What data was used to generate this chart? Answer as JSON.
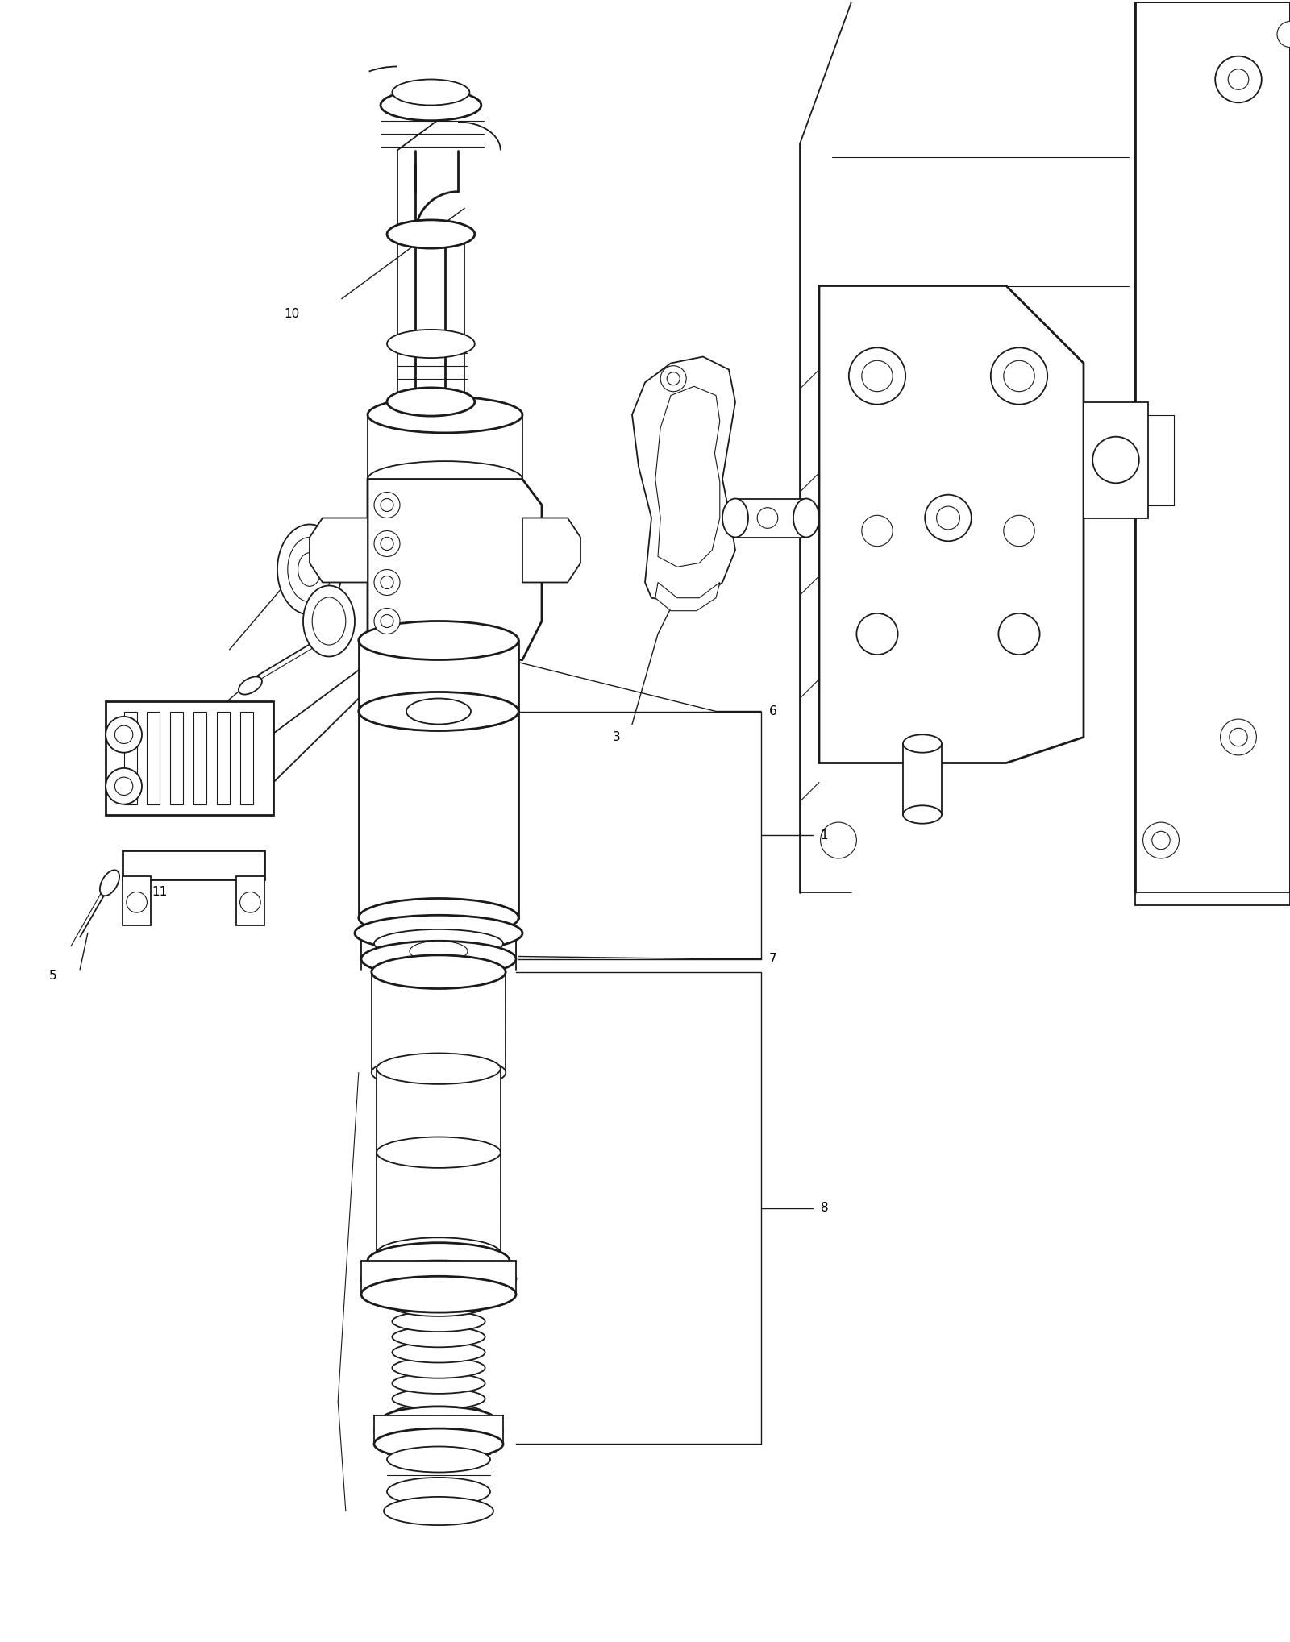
{
  "background_color": "#ffffff",
  "fig_width": 16.0,
  "fig_height": 20.37,
  "line_color": "#1a1a1a",
  "lw_thin": 0.8,
  "lw_med": 1.3,
  "lw_thick": 2.0,
  "label_fontsize": 11,
  "label_color": "#000000",
  "xlim": [
    0,
    1000
  ],
  "ylim": [
    0,
    1270
  ]
}
